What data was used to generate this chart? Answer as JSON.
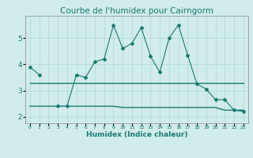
{
  "title": "Courbe de l'humidex pour Cairngorm",
  "xlabel": "Humidex (Indice chaleur)",
  "x": [
    0,
    1,
    2,
    3,
    4,
    5,
    6,
    7,
    8,
    9,
    10,
    11,
    12,
    13,
    14,
    15,
    16,
    17,
    18,
    19,
    20,
    21,
    22,
    23
  ],
  "y_main": [
    3.9,
    3.6,
    null,
    2.4,
    2.4,
    3.6,
    3.5,
    4.1,
    4.2,
    5.5,
    4.6,
    4.8,
    5.4,
    4.3,
    3.7,
    5.0,
    5.5,
    4.35,
    3.25,
    3.05,
    2.65,
    2.65,
    2.25,
    2.2
  ],
  "y_upper": [
    3.3,
    3.3,
    3.3,
    3.3,
    3.3,
    3.3,
    3.3,
    3.3,
    3.3,
    3.3,
    3.3,
    3.3,
    3.3,
    3.3,
    3.3,
    3.3,
    3.3,
    3.3,
    3.3,
    3.3,
    3.3,
    3.3,
    3.3,
    3.3
  ],
  "y_lower": [
    2.4,
    2.4,
    2.4,
    2.4,
    2.4,
    2.4,
    2.4,
    2.4,
    2.4,
    2.4,
    2.35,
    2.35,
    2.35,
    2.35,
    2.35,
    2.35,
    2.35,
    2.35,
    2.35,
    2.35,
    2.35,
    2.25,
    2.25,
    2.25
  ],
  "line_color": "#1a7a6e",
  "bg_color": "#d0eceb",
  "grid_color": "#b0d8d5",
  "ylim": [
    1.75,
    5.85
  ],
  "yticks": [
    2,
    3,
    4,
    5
  ],
  "title_fontsize": 7.5
}
